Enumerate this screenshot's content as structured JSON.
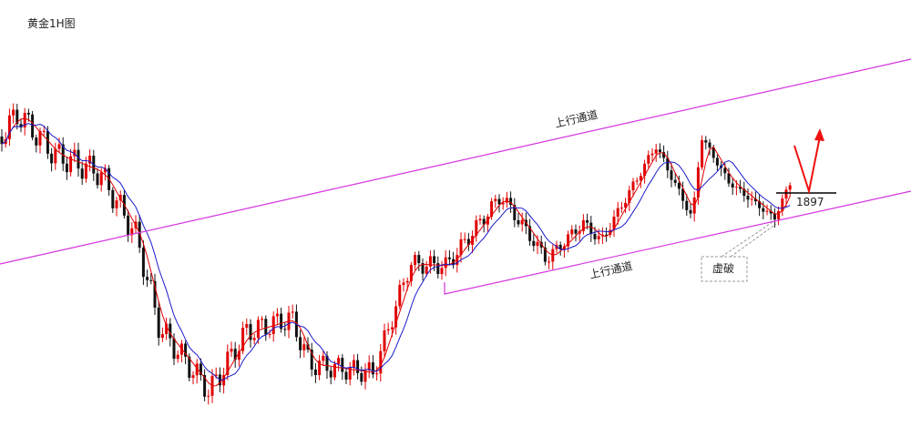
{
  "title": "黄金1H图",
  "annotations": {
    "channel_upper": "上行通道",
    "channel_lower": "上行通道",
    "false_break": "虚破",
    "level": "1897"
  }
}
